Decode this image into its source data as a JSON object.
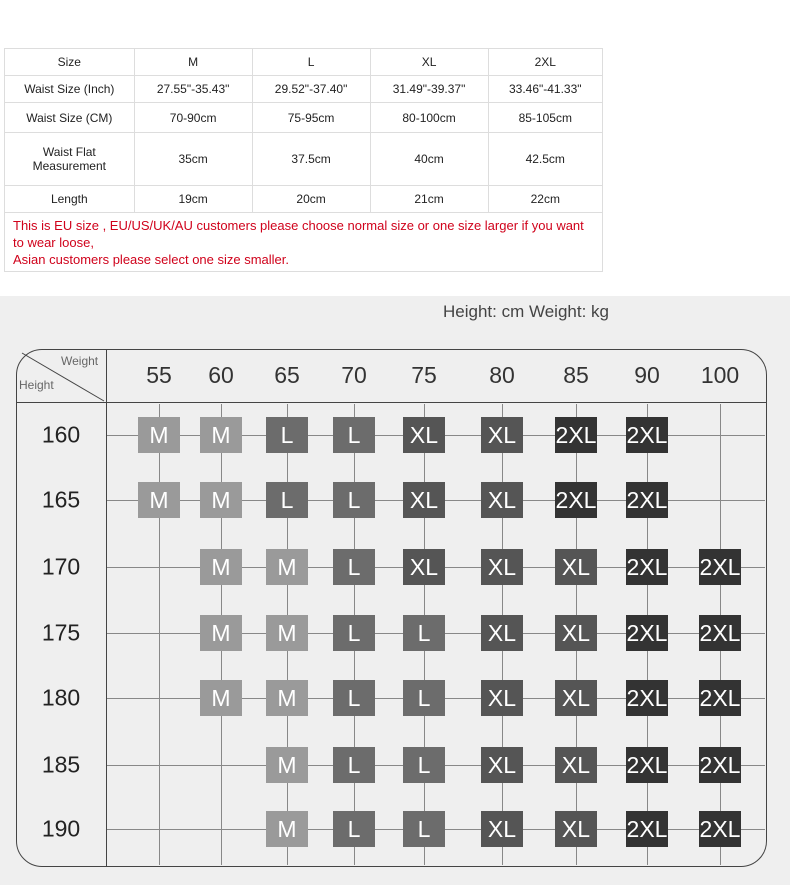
{
  "size_table": {
    "header": [
      "Size",
      "M",
      "L",
      "XL",
      "2XL"
    ],
    "rows": [
      [
        "Waist Size (Inch)",
        "27.55\"-35.43\"",
        "29.52\"-37.40\"",
        "31.49\"-39.37\"",
        "33.46\"-41.33\""
      ],
      [
        "Waist Size (CM)",
        "70-90cm",
        "75-95cm",
        "80-100cm",
        "85-105cm"
      ],
      [
        "Waist Flat Measurement",
        "35cm",
        "37.5cm",
        "40cm",
        "42.5cm"
      ],
      [
        "Length",
        "19cm",
        "20cm",
        "21cm",
        "22cm"
      ]
    ],
    "note_lines": [
      "This is EU size , EU/US/UK/AU customers please choose normal size or one size larger if you want to wear loose,",
      "Asian customers please select one size smaller."
    ]
  },
  "size_chart": {
    "units": "Height: cm Weight: kg",
    "corner_weight": "Weight",
    "corner_height": "Height",
    "weights": [
      "55",
      "60",
      "65",
      "70",
      "75",
      "80",
      "85",
      "90",
      "100"
    ],
    "heights": [
      "160",
      "165",
      "170",
      "175",
      "180",
      "185",
      "190"
    ],
    "grid": [
      [
        "M",
        "M",
        "L",
        "L",
        "XL",
        "XL",
        "2XL",
        "2XL",
        ""
      ],
      [
        "M",
        "M",
        "L",
        "L",
        "XL",
        "XL",
        "2XL",
        "2XL",
        ""
      ],
      [
        "",
        "M",
        "M",
        "L",
        "XL",
        "XL",
        "XL",
        "2XL",
        "2XL"
      ],
      [
        "",
        "M",
        "M",
        "L",
        "L",
        "XL",
        "XL",
        "2XL",
        "2XL"
      ],
      [
        "",
        "M",
        "M",
        "L",
        "L",
        "XL",
        "XL",
        "2XL",
        "2XL"
      ],
      [
        "",
        "",
        "M",
        "L",
        "L",
        "XL",
        "XL",
        "2XL",
        "2XL"
      ],
      [
        "",
        "",
        "M",
        "L",
        "L",
        "XL",
        "XL",
        "2XL",
        "2XL"
      ]
    ],
    "colors": {
      "M": "#9a9a9a",
      "L": "#6c6c6c",
      "XL": "#555555",
      "2XL": "#333333",
      "background": "#efefef",
      "note": "#d0021b"
    }
  }
}
